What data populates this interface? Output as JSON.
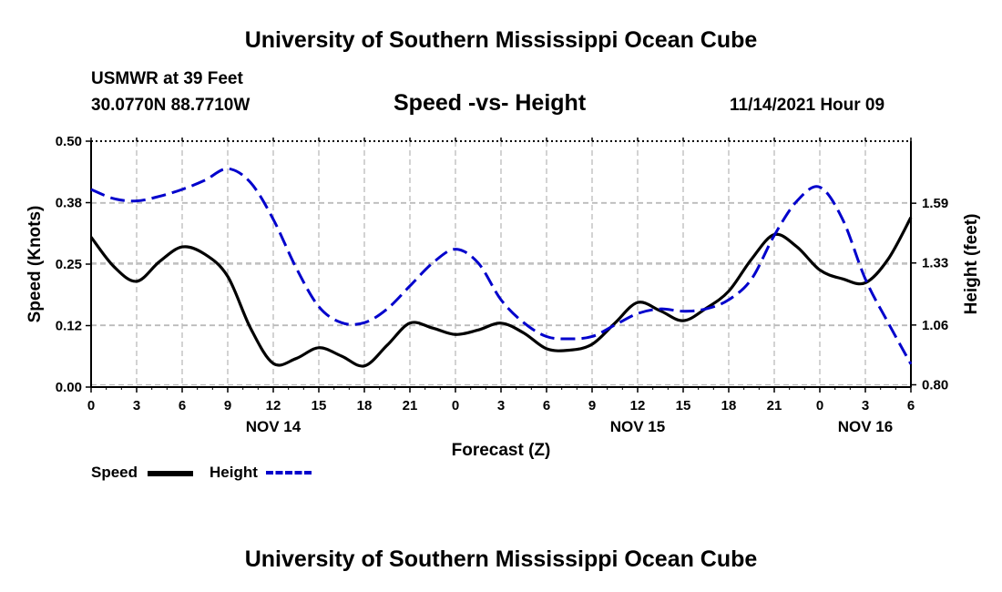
{
  "header": {
    "title": "University of Southern Mississippi Ocean Cube",
    "station": "USMWR at 39 Feet",
    "coordinates": "30.0770N  88.7710W",
    "subtitle": "Speed -vs- Height",
    "timestamp": "11/14/2021 Hour 09"
  },
  "footer": {
    "title": "University of Southern Mississippi Ocean Cube"
  },
  "legend": {
    "speed_label": "Speed",
    "height_label": "Height"
  },
  "colors": {
    "speed": "#000000",
    "height": "#0000cc",
    "grid": "#bbbbbb"
  },
  "chart_data": {
    "type": "line",
    "title": "Speed -vs- Height",
    "xlabel": "Forecast (Z)",
    "ylabel": "Speed (Knots)",
    "y2label": "Height (feet)",
    "x_unit": "forecast hours from NOV 14 00Z",
    "xlim": [
      0,
      54
    ],
    "ylim": [
      0,
      0.5
    ],
    "y2lim": [
      0.79,
      1.86
    ],
    "x_ticks": [
      {
        "x": 0,
        "label": "0"
      },
      {
        "x": 3,
        "label": "3"
      },
      {
        "x": 6,
        "label": "6"
      },
      {
        "x": 9,
        "label": "9"
      },
      {
        "x": 12,
        "label": "12"
      },
      {
        "x": 15,
        "label": "15"
      },
      {
        "x": 18,
        "label": "18"
      },
      {
        "x": 21,
        "label": "21"
      },
      {
        "x": 24,
        "label": "0"
      },
      {
        "x": 27,
        "label": "3"
      },
      {
        "x": 30,
        "label": "6"
      },
      {
        "x": 33,
        "label": "9"
      },
      {
        "x": 36,
        "label": "12"
      },
      {
        "x": 39,
        "label": "15"
      },
      {
        "x": 42,
        "label": "18"
      },
      {
        "x": 45,
        "label": "21"
      },
      {
        "x": 48,
        "label": "0"
      },
      {
        "x": 51,
        "label": "3"
      },
      {
        "x": 54,
        "label": "6"
      }
    ],
    "date_labels": [
      {
        "x": 12,
        "label": "NOV 14"
      },
      {
        "x": 36,
        "label": "NOV 15"
      },
      {
        "x": 51,
        "label": "NOV 16"
      }
    ],
    "y_ticks": [
      {
        "value": 0.0,
        "label": "0.00"
      },
      {
        "value": 0.125,
        "label": "0.12"
      },
      {
        "value": 0.25,
        "label": "0.25"
      },
      {
        "value": 0.375,
        "label": "0.38"
      },
      {
        "value": 0.5,
        "label": "0.50"
      }
    ],
    "y2_ticks": [
      {
        "value": 0.8,
        "label": "0.80"
      },
      {
        "value": 1.06,
        "label": "1.06"
      },
      {
        "value": 1.33,
        "label": "1.33"
      },
      {
        "value": 1.59,
        "label": "1.59"
      }
    ],
    "series": [
      {
        "name": "Speed",
        "axis": "left",
        "style": "solid",
        "x": [
          0,
          1.5,
          3,
          4.5,
          6,
          7.5,
          9,
          10.5,
          12,
          13.5,
          15,
          16.5,
          18,
          19.5,
          21,
          22.5,
          24,
          25.5,
          27,
          28.5,
          30,
          31.5,
          33,
          34.5,
          36,
          37.5,
          39,
          40.5,
          42,
          43.5,
          45,
          46.5,
          48,
          49.5,
          51,
          52.5,
          54
        ],
        "values": [
          0.305,
          0.245,
          0.215,
          0.255,
          0.285,
          0.27,
          0.225,
          0.12,
          0.048,
          0.058,
          0.08,
          0.063,
          0.043,
          0.085,
          0.13,
          0.12,
          0.107,
          0.116,
          0.13,
          0.11,
          0.078,
          0.075,
          0.087,
          0.13,
          0.172,
          0.155,
          0.135,
          0.16,
          0.195,
          0.26,
          0.31,
          0.285,
          0.238,
          0.22,
          0.212,
          0.26,
          0.345
        ]
      },
      {
        "name": "Height",
        "axis": "right",
        "style": "dashed",
        "x": [
          0,
          1.5,
          3,
          4.5,
          6,
          7.5,
          9,
          10.5,
          12,
          13.5,
          15,
          16.5,
          18,
          19.5,
          21,
          22.5,
          24,
          25.5,
          27,
          28.5,
          30,
          31.5,
          33,
          34.5,
          36,
          37.5,
          39,
          40.5,
          42,
          43.5,
          45,
          46.5,
          48,
          49.5,
          51,
          52.5,
          54
        ],
        "values": [
          1.65,
          1.61,
          1.6,
          1.62,
          1.65,
          1.69,
          1.74,
          1.68,
          1.52,
          1.31,
          1.14,
          1.07,
          1.07,
          1.13,
          1.23,
          1.33,
          1.39,
          1.33,
          1.17,
          1.07,
          1.01,
          1.0,
          1.01,
          1.06,
          1.11,
          1.13,
          1.12,
          1.13,
          1.17,
          1.26,
          1.45,
          1.6,
          1.66,
          1.52,
          1.26,
          1.07,
          0.89
        ]
      }
    ]
  }
}
